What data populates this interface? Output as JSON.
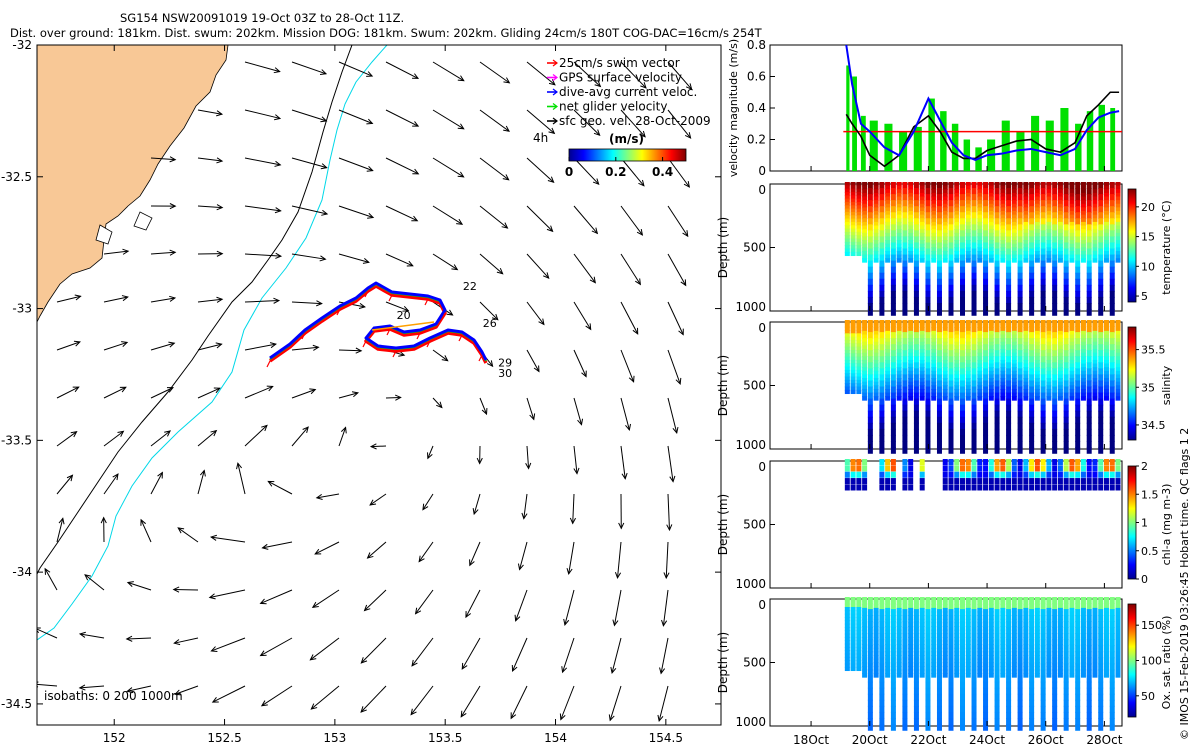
{
  "title_line1": "SG154 NSW20091019 19-Oct 03Z to 28-Oct 11Z.",
  "title_line2": "Dist. over ground: 181km. Dist. swum: 202km. Mission DOG: 181km. Swum: 202km. Gliding 24cm/s 180T COG-DAC=16cm/s 254T",
  "colors": {
    "land": "#f8c896",
    "coast": "#000000",
    "isobath_200": "#00d8e8",
    "isobath_1000": "#000000",
    "swim": "#ff0000",
    "gps": "#ff00ff",
    "dac": "#0000ff",
    "net": "#00e000",
    "sfc_vel": "#000000",
    "threshold_line": "#ff0000"
  },
  "map": {
    "xlim": [
      151.65,
      154.75
    ],
    "ylim": [
      -34.58,
      -32.0
    ],
    "x_ticks": [
      "152",
      "152.5",
      "153",
      "153.5",
      "154",
      "154.5"
    ],
    "y_ticks": [
      "-32",
      "-32.5",
      "-33",
      "-33.5",
      "-34",
      "-34.5"
    ],
    "legend": [
      {
        "label": "25cm/s swim vector",
        "color": "#ff0000"
      },
      {
        "label": "GPS surface velocity",
        "color": "#ff00ff"
      },
      {
        "label": "dive-avg current veloc.",
        "color": "#0000ff"
      },
      {
        "label": "net glider velocity",
        "color": "#00e000"
      },
      {
        "label": "sfc geo. vel. 28-Oct-2009",
        "color": "#000000"
      }
    ],
    "legend_note": "4h",
    "colorbar": {
      "unit": "(m/s)",
      "ticks": [
        "0",
        "0.2",
        "0.4"
      ],
      "range": [
        0,
        0.5
      ]
    },
    "day_labels": [
      {
        "text": "20",
        "lon": 153.28,
        "lat": -33.04
      },
      {
        "text": "22",
        "lon": 153.58,
        "lat": -32.93
      },
      {
        "text": "26",
        "lon": 153.67,
        "lat": -33.07
      },
      {
        "text": "29",
        "lon": 153.74,
        "lat": -33.22
      },
      {
        "text": "30",
        "lon": 153.74,
        "lat": -33.26
      }
    ],
    "isobath_label": "isobaths: 0   200  1000m"
  },
  "timeseries": {
    "x_ticks": [
      "18Oct",
      "20Oct",
      "22Oct",
      "24Oct",
      "26Oct",
      "28Oct"
    ],
    "x_tick_days": [
      18,
      20,
      22,
      24,
      26,
      28
    ],
    "xlim_days": [
      16.6,
      28.6
    ],
    "data_start_day": 19.1,
    "velocity": {
      "ylabel": "velocity magnitude (m/s)",
      "ylim": [
        0,
        0.8
      ],
      "y_ticks": [
        "0",
        "0.2",
        "0.4",
        "0.6",
        "0.8"
      ],
      "threshold": 0.25,
      "day": [
        19.1,
        19.2,
        19.4,
        19.7,
        20.0,
        20.5,
        21.0,
        21.5,
        22.0,
        22.4,
        22.8,
        23.2,
        23.6,
        24.0,
        24.5,
        25.0,
        25.5,
        26.0,
        26.5,
        27.0,
        27.4,
        27.8,
        28.2,
        28.5
      ],
      "dac": [
        0.0,
        0.8,
        0.55,
        0.3,
        0.25,
        0.15,
        0.1,
        0.25,
        0.46,
        0.32,
        0.18,
        0.1,
        0.07,
        0.1,
        0.11,
        0.13,
        0.14,
        0.12,
        0.1,
        0.14,
        0.26,
        0.34,
        0.37,
        0.38
      ],
      "sfc": [
        0.0,
        0.36,
        0.3,
        0.22,
        0.1,
        0.03,
        0.1,
        0.28,
        0.35,
        0.25,
        0.12,
        0.08,
        0.08,
        0.13,
        0.16,
        0.19,
        0.2,
        0.14,
        0.12,
        0.18,
        0.35,
        0.42,
        0.5,
        0.5
      ],
      "net": [
        0.0,
        0.67,
        0.6,
        0.35,
        0.32,
        0.3,
        0.25,
        0.28,
        0.46,
        0.38,
        0.3,
        0.2,
        0.15,
        0.2,
        0.32,
        0.25,
        0.35,
        0.32,
        0.4,
        0.3,
        0.38,
        0.42,
        0.4,
        0.36
      ]
    },
    "panels": [
      {
        "name": "temperature",
        "ylabel": "Depth (m)",
        "clabel": "temperature (°C)",
        "c_ticks": [
          "5",
          "10",
          "15",
          "20"
        ],
        "crange": [
          4,
          23
        ],
        "y_ticks": [
          "0",
          "500",
          "1000"
        ]
      },
      {
        "name": "salinity",
        "ylabel": "Depth (m)",
        "clabel": "salinity",
        "c_ticks": [
          "34.5",
          "35",
          "35.5"
        ],
        "crange": [
          34.3,
          35.8
        ],
        "y_ticks": [
          "0",
          "500",
          "1000"
        ]
      },
      {
        "name": "chl-a",
        "ylabel": "Depth (m)",
        "clabel": "chl-a (mg m-3)",
        "c_ticks": [
          "0",
          "0.5",
          "1",
          "1.5",
          "2"
        ],
        "crange": [
          0,
          2
        ],
        "y_ticks": [
          "0",
          "500",
          "1000"
        ]
      },
      {
        "name": "oxygen",
        "ylabel": "Depth (m)",
        "clabel": "Ox. sat. ratio (%)",
        "c_ticks": [
          "50",
          "100",
          "150"
        ],
        "crange": [
          20,
          180
        ],
        "y_ticks": [
          "0",
          "500",
          "1000"
        ]
      }
    ]
  },
  "side_note": "© IMOS 15-Feb-2019 03:26:45 Hobart time. QC flags 1  2"
}
